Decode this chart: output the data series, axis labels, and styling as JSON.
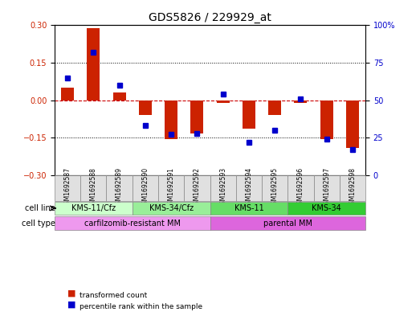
{
  "title": "GDS5826 / 229929_at",
  "samples": [
    "GSM1692587",
    "GSM1692588",
    "GSM1692589",
    "GSM1692590",
    "GSM1692591",
    "GSM1692592",
    "GSM1692593",
    "GSM1692594",
    "GSM1692595",
    "GSM1692596",
    "GSM1692597",
    "GSM1692598"
  ],
  "transformed_count": [
    0.05,
    0.29,
    0.03,
    -0.06,
    -0.155,
    -0.135,
    -0.01,
    -0.115,
    -0.06,
    -0.01,
    -0.155,
    -0.19
  ],
  "percentile_rank": [
    65,
    82,
    60,
    33,
    27,
    28,
    54,
    22,
    30,
    51,
    24,
    17
  ],
  "ylim_left": [
    -0.3,
    0.3
  ],
  "ylim_right": [
    0,
    100
  ],
  "yticks_left": [
    -0.3,
    -0.15,
    0,
    0.15,
    0.3
  ],
  "yticks_right": [
    0,
    25,
    50,
    75,
    100
  ],
  "bar_color": "#cc2200",
  "dot_color": "#0000cc",
  "zero_line_color": "#cc0000",
  "grid_line_color": "#000000",
  "cell_line_groups": [
    {
      "label": "KMS-11/Cfz",
      "start": 0,
      "end": 2,
      "color": "#ccffcc"
    },
    {
      "label": "KMS-34/Cfz",
      "start": 3,
      "end": 5,
      "color": "#99ee99"
    },
    {
      "label": "KMS-11",
      "start": 6,
      "end": 8,
      "color": "#66dd66"
    },
    {
      "label": "KMS-34",
      "start": 9,
      "end": 11,
      "color": "#33cc33"
    }
  ],
  "cell_type_groups": [
    {
      "label": "carfilzomib-resistant MM",
      "start": 0,
      "end": 5,
      "color": "#ee99ee"
    },
    {
      "label": "parental MM",
      "start": 6,
      "end": 11,
      "color": "#dd66dd"
    }
  ],
  "cell_line_label": "cell line",
  "cell_type_label": "cell type",
  "legend_items": [
    {
      "color": "#cc2200",
      "label": "transformed count"
    },
    {
      "color": "#0000cc",
      "label": "percentile rank within the sample"
    }
  ]
}
